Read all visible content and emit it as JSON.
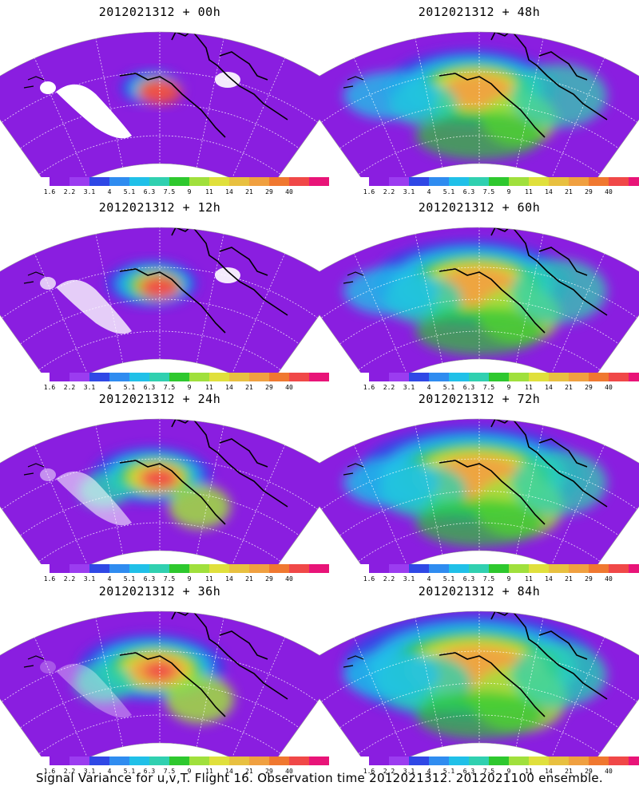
{
  "caption": "Signal Variance for u,v,T. Flight 16. Observation time 2012021312. 2012021100 ensemble.",
  "colorbar": {
    "colors": [
      "#8a1ee0",
      "#9b3cf0",
      "#2f48e6",
      "#2f8cf0",
      "#20c0e8",
      "#30d0b0",
      "#2ec82e",
      "#a0e03c",
      "#e0e03c",
      "#e8c040",
      "#f0a040",
      "#f07830",
      "#f04848",
      "#e81478"
    ],
    "labels": [
      "1.6",
      "2.2",
      "3.1",
      "4",
      "5.1",
      "6.3",
      "7.5",
      "9",
      "11",
      "14",
      "21",
      "29",
      "40"
    ]
  },
  "panels": [
    {
      "title": "2012021312 + 00h",
      "intensity": 0
    },
    {
      "title": "2012021312 + 12h",
      "intensity": 1
    },
    {
      "title": "2012021312 + 24h",
      "intensity": 2
    },
    {
      "title": "2012021312 + 36h",
      "intensity": 3
    },
    {
      "title": "2012021312 + 48h",
      "intensity": 4
    },
    {
      "title": "2012021312 + 60h",
      "intensity": 5
    },
    {
      "title": "2012021312 + 72h",
      "intensity": 6
    },
    {
      "title": "2012021312 + 84h",
      "intensity": 7
    }
  ]
}
